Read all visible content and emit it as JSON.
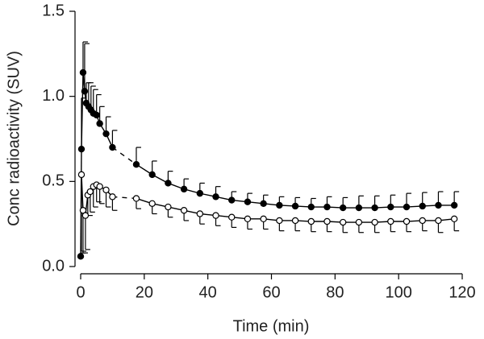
{
  "chart_data": {
    "type": "line",
    "xlabel": "Time (min)",
    "ylabel": "Conc radioactivity (SUV)",
    "xlim": [
      0,
      120
    ],
    "xticks": [
      0,
      20,
      40,
      60,
      80,
      100,
      120
    ],
    "ylim": [
      0,
      1.5
    ],
    "yticks": [
      {
        "value": 0,
        "label": "0.0"
      },
      0.5,
      {
        "value": 1,
        "label": "1.0"
      },
      1.5
    ],
    "series": [
      {
        "color": "#000000",
        "marker": "filled",
        "error_direction": "up",
        "x": [
          0,
          0.25,
          0.75,
          1.25,
          1.75,
          2.5,
          3.25,
          4,
          5,
          6,
          8,
          10,
          17.5,
          22.5,
          27.5,
          32.5,
          37.5,
          42.5,
          47.5,
          52.5,
          57.5,
          62.5,
          67.5,
          72.5,
          77.5,
          82.5,
          87.5,
          92.5,
          97.5,
          102.5,
          107.5,
          112.5,
          117.5
        ],
        "values": [
          0.06,
          0.69,
          1.14,
          1.03,
          0.96,
          0.94,
          0.92,
          0.9,
          0.89,
          0.84,
          0.78,
          0.7,
          0.6,
          0.54,
          0.49,
          0.455,
          0.43,
          0.41,
          0.39,
          0.38,
          0.37,
          0.36,
          0.355,
          0.35,
          0.35,
          0.345,
          0.345,
          0.345,
          0.35,
          0.35,
          0.355,
          0.36,
          0.36
        ],
        "errors": [
          0.02,
          0.3,
          0.18,
          0.28,
          0.12,
          0.14,
          0.14,
          0.14,
          0.12,
          0.1,
          0.1,
          0.1,
          0.1,
          0.08,
          0.07,
          0.06,
          0.06,
          0.06,
          0.05,
          0.05,
          0.05,
          0.05,
          0.05,
          0.05,
          0.06,
          0.06,
          0.07,
          0.07,
          0.07,
          0.08,
          0.08,
          0.08,
          0.08
        ]
      },
      {
        "color": "#000000",
        "marker": "open",
        "error_direction": "down",
        "x": [
          0.25,
          0.75,
          1.5,
          2.25,
          3,
          4,
          5,
          6,
          8,
          10,
          17.5,
          22.5,
          27.5,
          32.5,
          37.5,
          42.5,
          47.5,
          52.5,
          57.5,
          62.5,
          67.5,
          72.5,
          77.5,
          82.5,
          87.5,
          92.5,
          97.5,
          102.5,
          107.5,
          112.5,
          117.5
        ],
        "values": [
          0.54,
          0.33,
          0.3,
          0.42,
          0.44,
          0.47,
          0.48,
          0.47,
          0.45,
          0.41,
          0.4,
          0.37,
          0.35,
          0.33,
          0.31,
          0.3,
          0.29,
          0.28,
          0.28,
          0.27,
          0.27,
          0.265,
          0.265,
          0.26,
          0.26,
          0.26,
          0.265,
          0.265,
          0.27,
          0.27,
          0.28
        ],
        "errors": [
          0.45,
          0.25,
          0.2,
          0.12,
          0.12,
          0.12,
          0.1,
          0.1,
          0.1,
          0.08,
          0.06,
          0.06,
          0.06,
          0.06,
          0.06,
          0.06,
          0.06,
          0.06,
          0.06,
          0.06,
          0.06,
          0.06,
          0.06,
          0.06,
          0.06,
          0.06,
          0.06,
          0.06,
          0.06,
          0.07,
          0.07
        ]
      }
    ]
  }
}
